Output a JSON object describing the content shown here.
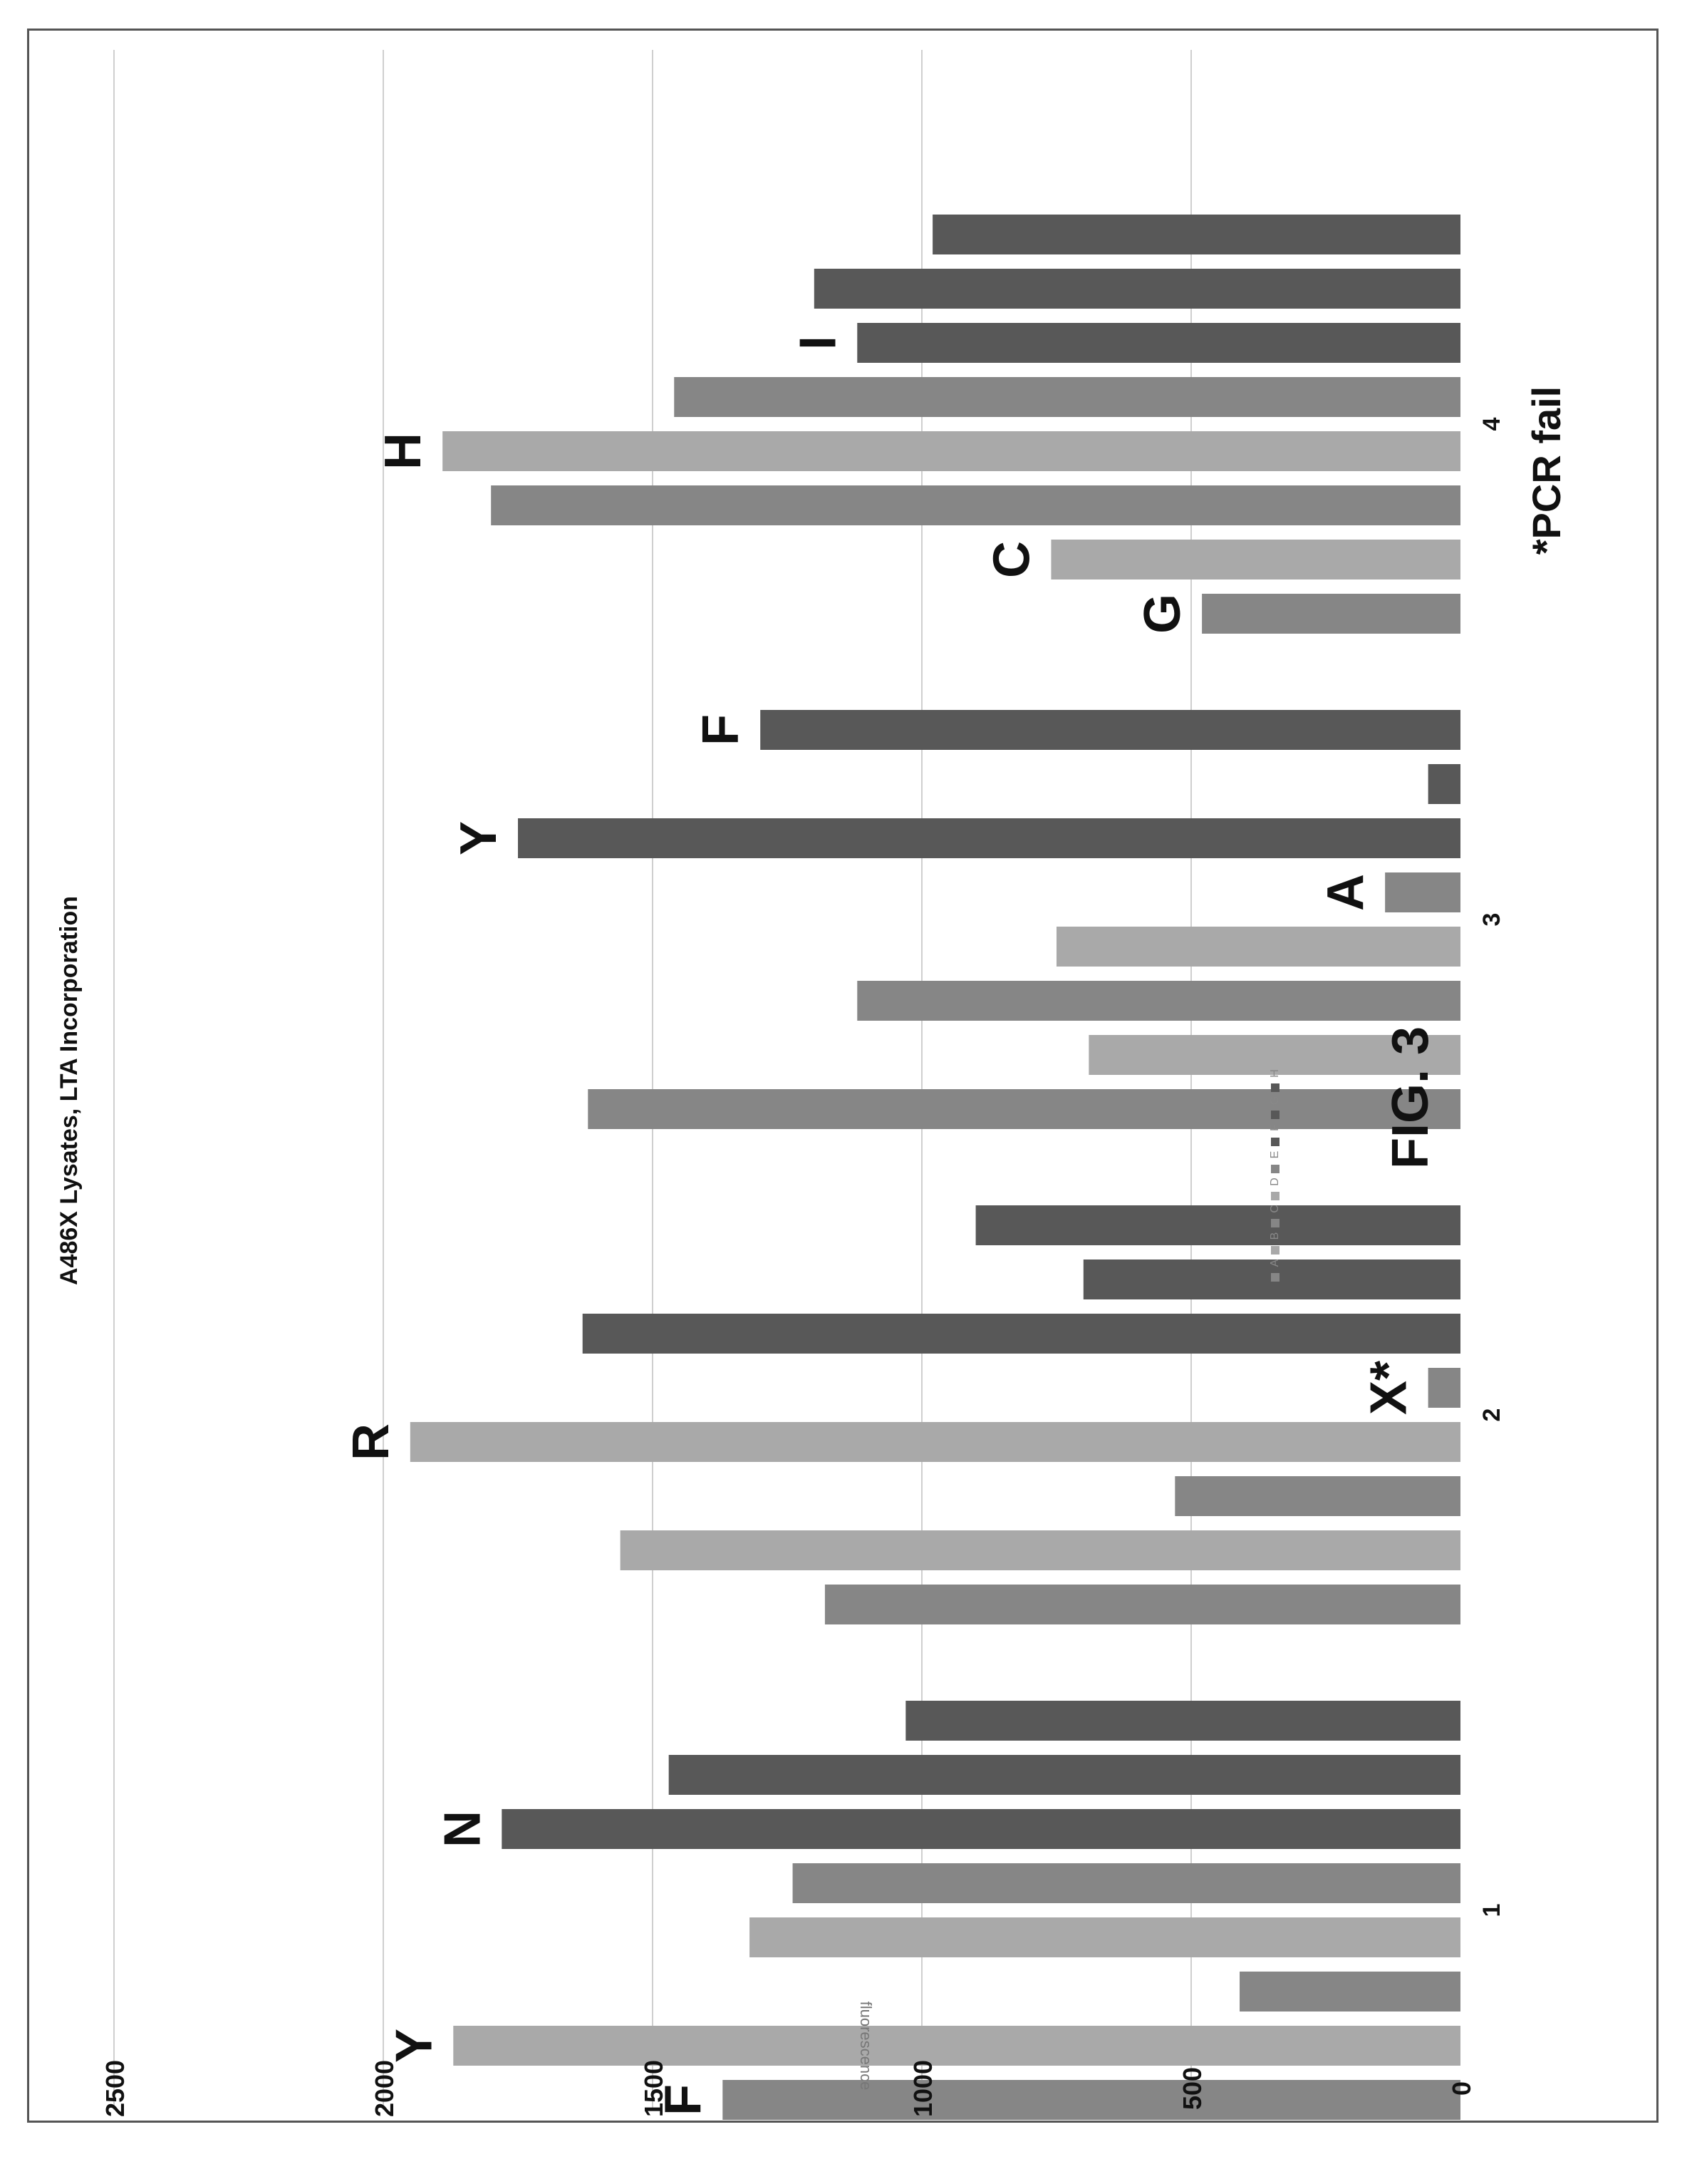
{
  "figure": {
    "caption": "FIG. 3",
    "footnote": "*PCR fail"
  },
  "colors": {
    "dark": "#585858",
    "mid": "#868686",
    "light": "#a9a9a9",
    "grid": "#cfcfcf",
    "text": "#111111"
  },
  "chart_data": {
    "type": "bar",
    "orientation": "horizontal-rotated",
    "title": "A486X Lysates, LTA Incorporation",
    "ylabel": "fluorescence",
    "ylim": [
      0,
      2500
    ],
    "yticks": [
      0,
      500,
      1000,
      1500,
      2000,
      2500
    ],
    "categories": [
      "1",
      "2",
      "3",
      "4"
    ],
    "legend": {
      "position": "right",
      "labels": [
        "A",
        "B",
        "C",
        "D",
        "E",
        "F",
        "G",
        "H"
      ]
    },
    "series": [
      {
        "name": "A",
        "values": [
          1370,
          1180,
          1620,
          480
        ]
      },
      {
        "name": "B",
        "values": [
          1870,
          1560,
          690,
          760
        ]
      },
      {
        "name": "C",
        "values": [
          410,
          530,
          1120,
          1800
        ]
      },
      {
        "name": "D",
        "values": [
          1320,
          1950,
          750,
          1890
        ]
      },
      {
        "name": "E",
        "values": [
          1240,
          60,
          140,
          1460
        ]
      },
      {
        "name": "F",
        "values": [
          1780,
          1630,
          1750,
          1120
        ]
      },
      {
        "name": "G",
        "values": [
          1470,
          700,
          60,
          1200
        ]
      },
      {
        "name": "H",
        "values": [
          1030,
          900,
          1300,
          980
        ]
      }
    ],
    "annotations": [
      {
        "category": "1",
        "series": "A",
        "text": "F"
      },
      {
        "category": "1",
        "series": "B",
        "text": "Y"
      },
      {
        "category": "1",
        "series": "F",
        "text": "N"
      },
      {
        "category": "2",
        "series": "D",
        "text": "R"
      },
      {
        "category": "2",
        "series": "E",
        "text": "X*"
      },
      {
        "category": "3",
        "series": "E",
        "text": "A"
      },
      {
        "category": "3",
        "series": "F",
        "text": "Y"
      },
      {
        "category": "3",
        "series": "H",
        "text": "F"
      },
      {
        "category": "4",
        "series": "A",
        "text": "G"
      },
      {
        "category": "4",
        "series": "B",
        "text": "C"
      },
      {
        "category": "4",
        "series": "D",
        "text": "H"
      },
      {
        "category": "4",
        "series": "F",
        "text": "I"
      }
    ]
  }
}
